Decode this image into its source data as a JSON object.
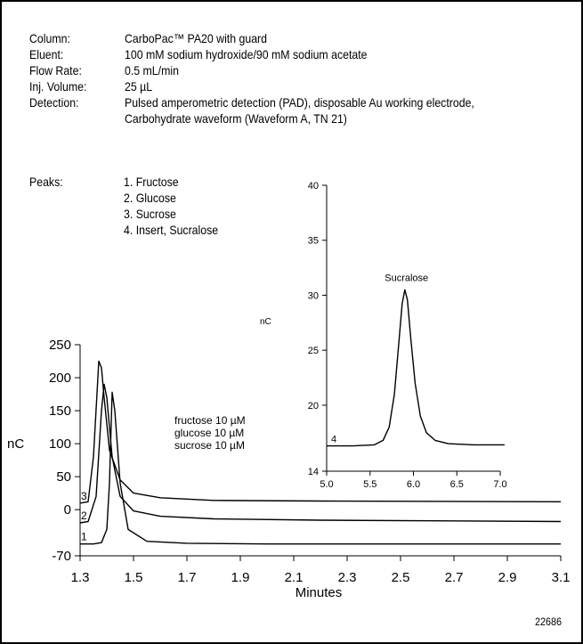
{
  "conditions": [
    {
      "label": "Column:",
      "value": "CarboPac™ PA20 with guard"
    },
    {
      "label": "Eluent:",
      "value": "100 mM sodium hydroxide/90 mM sodium acetate"
    },
    {
      "label": "Flow Rate:",
      "value": "0.5 mL/min"
    },
    {
      "label": "Inj. Volume:",
      "value": "25 µL"
    },
    {
      "label": "Detection:",
      "value": "Pulsed amperometric detection (PAD), disposable Au working electrode,"
    },
    {
      "label": "",
      "value": "Carbohydrate waveform (Waveform A, TN 21)"
    }
  ],
  "peaks_label": "Peaks:",
  "peaks": [
    "1. Fructose",
    "2. Glucose",
    "3. Sucrose",
    "4. Insert, Sucralose"
  ],
  "figure_id": "22686",
  "chart_data": [
    {
      "type": "line",
      "xlabel": "Minutes",
      "ylabel": "nC",
      "xlim": [
        1.3,
        3.1
      ],
      "ylim": [
        -70,
        250
      ],
      "x_ticks": [
        1.3,
        1.5,
        1.7,
        1.9,
        2.1,
        2.3,
        2.5,
        2.7,
        2.9,
        3.1
      ],
      "y_ticks": [
        -70,
        0,
        50,
        100,
        150,
        200,
        250
      ],
      "grid": false,
      "annotation": [
        "fructose 10 µM",
        "glucose 10 µM",
        "sucrose 10 µM"
      ],
      "series": [
        {
          "name": "1",
          "x": [
            1.3,
            1.35,
            1.38,
            1.4,
            1.41,
            1.42,
            1.43,
            1.45,
            1.48,
            1.55,
            1.7,
            2.0,
            3.1
          ],
          "y": [
            -52,
            -52,
            -50,
            -30,
            40,
            178,
            150,
            40,
            -30,
            -48,
            -51,
            -52,
            -52
          ]
        },
        {
          "name": "2",
          "x": [
            1.3,
            1.33,
            1.36,
            1.38,
            1.39,
            1.4,
            1.42,
            1.45,
            1.5,
            1.6,
            1.8,
            2.2,
            3.1
          ],
          "y": [
            -20,
            -18,
            20,
            150,
            190,
            170,
            80,
            20,
            -2,
            -10,
            -14,
            -16,
            -18
          ]
        },
        {
          "name": "3",
          "x": [
            1.3,
            1.33,
            1.35,
            1.37,
            1.38,
            1.39,
            1.41,
            1.45,
            1.5,
            1.6,
            1.8,
            2.2,
            3.1
          ],
          "y": [
            10,
            12,
            80,
            225,
            215,
            170,
            90,
            45,
            25,
            18,
            14,
            13,
            12
          ]
        }
      ]
    },
    {
      "type": "line",
      "ylabel": "nC",
      "xlim": [
        5.0,
        7.0
      ],
      "ylim": [
        14,
        40
      ],
      "x_ticks": [
        5.0,
        5.5,
        6.0,
        6.5,
        7.0
      ],
      "y_ticks": [
        14,
        20,
        25,
        30,
        35,
        40
      ],
      "grid": false,
      "annotation": [
        "Sucralose"
      ],
      "series": [
        {
          "name": "4",
          "x": [
            5.0,
            5.3,
            5.55,
            5.65,
            5.72,
            5.78,
            5.83,
            5.87,
            5.9,
            5.93,
            5.97,
            6.02,
            6.08,
            6.15,
            6.25,
            6.4,
            6.7,
            7.05
          ],
          "y": [
            16.3,
            16.3,
            16.4,
            16.8,
            18,
            21,
            25.5,
            29.2,
            30.5,
            29.6,
            26,
            22,
            19,
            17.5,
            16.8,
            16.5,
            16.4,
            16.4
          ]
        }
      ]
    }
  ]
}
